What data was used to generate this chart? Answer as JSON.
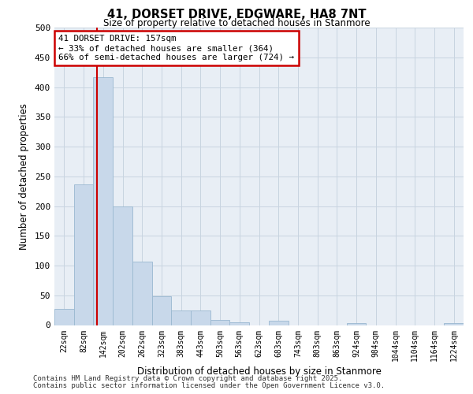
{
  "title": "41, DORSET DRIVE, EDGWARE, HA8 7NT",
  "subtitle": "Size of property relative to detached houses in Stanmore",
  "xlabel": "Distribution of detached houses by size in Stanmore",
  "ylabel": "Number of detached properties",
  "categories": [
    "22sqm",
    "82sqm",
    "142sqm",
    "202sqm",
    "262sqm",
    "323sqm",
    "383sqm",
    "443sqm",
    "503sqm",
    "563sqm",
    "623sqm",
    "683sqm",
    "743sqm",
    "803sqm",
    "863sqm",
    "924sqm",
    "984sqm",
    "1044sqm",
    "1104sqm",
    "1164sqm",
    "1224sqm"
  ],
  "bar_heights": [
    27,
    237,
    417,
    200,
    106,
    49,
    24,
    24,
    8,
    4,
    0,
    7,
    0,
    0,
    0,
    3,
    0,
    0,
    0,
    0,
    3
  ],
  "bar_color": "#c8d8ea",
  "bar_edge_color": "#9ab8d0",
  "property_line_color": "#cc0000",
  "annotation_text": "41 DORSET DRIVE: 157sqm\n← 33% of detached houses are smaller (364)\n66% of semi-detached houses are larger (724) →",
  "annotation_box_color": "#ffffff",
  "annotation_box_edge": "#cc0000",
  "ylim": [
    0,
    500
  ],
  "yticks": [
    0,
    50,
    100,
    150,
    200,
    250,
    300,
    350,
    400,
    450,
    500
  ],
  "grid_color": "#c8d4e0",
  "bg_color": "#e8eef5",
  "footer1": "Contains HM Land Registry data © Crown copyright and database right 2025.",
  "footer2": "Contains public sector information licensed under the Open Government Licence v3.0."
}
